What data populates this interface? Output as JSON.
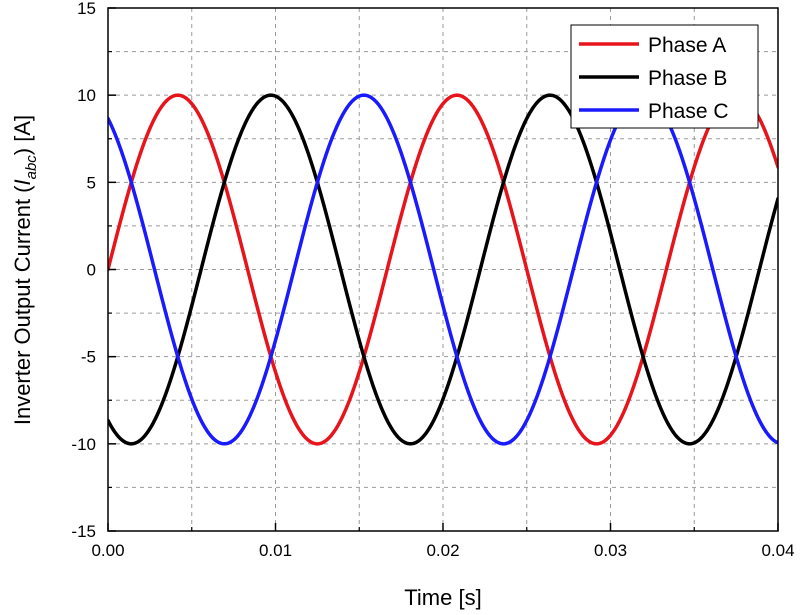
{
  "chart_data": {
    "type": "line",
    "title": "",
    "xlabel": "Time [s]",
    "ylabel": {
      "prefix": "Inverter Output Current (",
      "symbol": "I",
      "subscript": "abc",
      "suffix": ") [A]"
    },
    "xlim": [
      0,
      0.04
    ],
    "ylim": [
      -15,
      15
    ],
    "x_ticks": [
      0,
      0.01,
      0.02,
      0.03,
      0.04
    ],
    "x_tick_labels": [
      "0.00",
      "0.01",
      "0.02",
      "0.03",
      "0.04"
    ],
    "y_ticks": [
      -15,
      -10,
      -5,
      0,
      5,
      10,
      15
    ],
    "y_tick_labels": [
      "-15",
      "-10",
      "-5",
      "0",
      "5",
      "10",
      "15"
    ],
    "grid": true,
    "legend_position": "top-right",
    "series": [
      {
        "name": "Phase A",
        "color": "#e8141b",
        "amplitude": 10,
        "frequency_hz": 60,
        "phase_deg": 0
      },
      {
        "name": "Phase B",
        "color": "#000000",
        "amplitude": 10,
        "frequency_hz": 60,
        "phase_deg": -120
      },
      {
        "name": "Phase C",
        "color": "#1a1aff",
        "amplitude": 10,
        "frequency_hz": 60,
        "phase_deg": 120
      }
    ],
    "samples": 401
  }
}
